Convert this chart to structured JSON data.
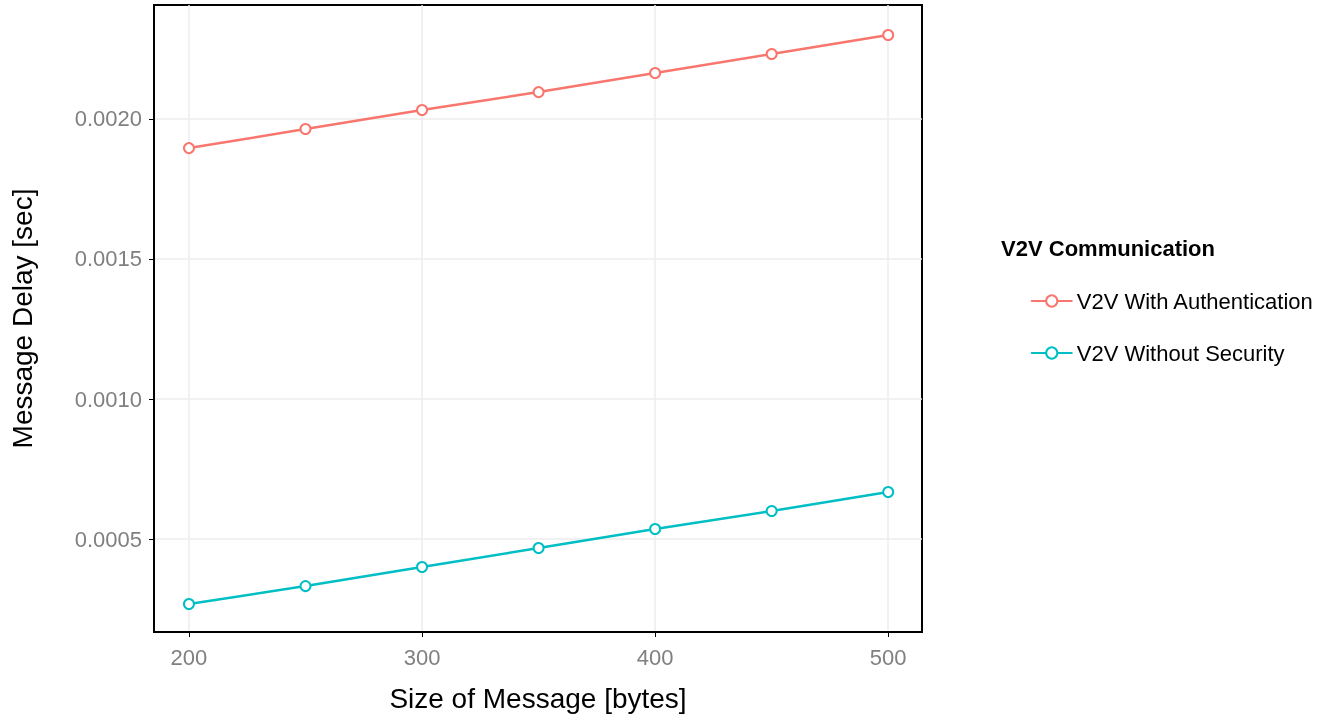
{
  "chart_data": {
    "type": "line",
    "xlabel": "Size of Message [bytes]",
    "ylabel": "Message Delay [sec]",
    "legend_title": "V2V Communication",
    "x": [
      200,
      250,
      300,
      350,
      400,
      450,
      500
    ],
    "series": [
      {
        "name": "V2V With Authentication",
        "color": "#f8766d",
        "values": [
          0.001896,
          0.001964,
          0.002032,
          0.002096,
          0.002164,
          0.002232,
          0.0023
        ]
      },
      {
        "name": "V2V Without Security",
        "color": "#00bfc4",
        "values": [
          0.000268,
          0.000332,
          0.0004,
          0.000468,
          0.000536,
          0.0006,
          0.000668
        ]
      }
    ],
    "xlim": [
      185,
      514.5
    ],
    "xticks": [
      200,
      300,
      400,
      500
    ],
    "ylim": [
      0.000168,
      0.002407
    ],
    "yticks": [
      {
        "value": 0.0005,
        "label": "0.0005"
      },
      {
        "value": 0.001,
        "label": "0.0010"
      },
      {
        "value": 0.0015,
        "label": "0.0015"
      },
      {
        "value": 0.002,
        "label": "0.0020"
      }
    ],
    "grid": true,
    "legend": "right",
    "marker": "circle",
    "line_style": "solid"
  }
}
